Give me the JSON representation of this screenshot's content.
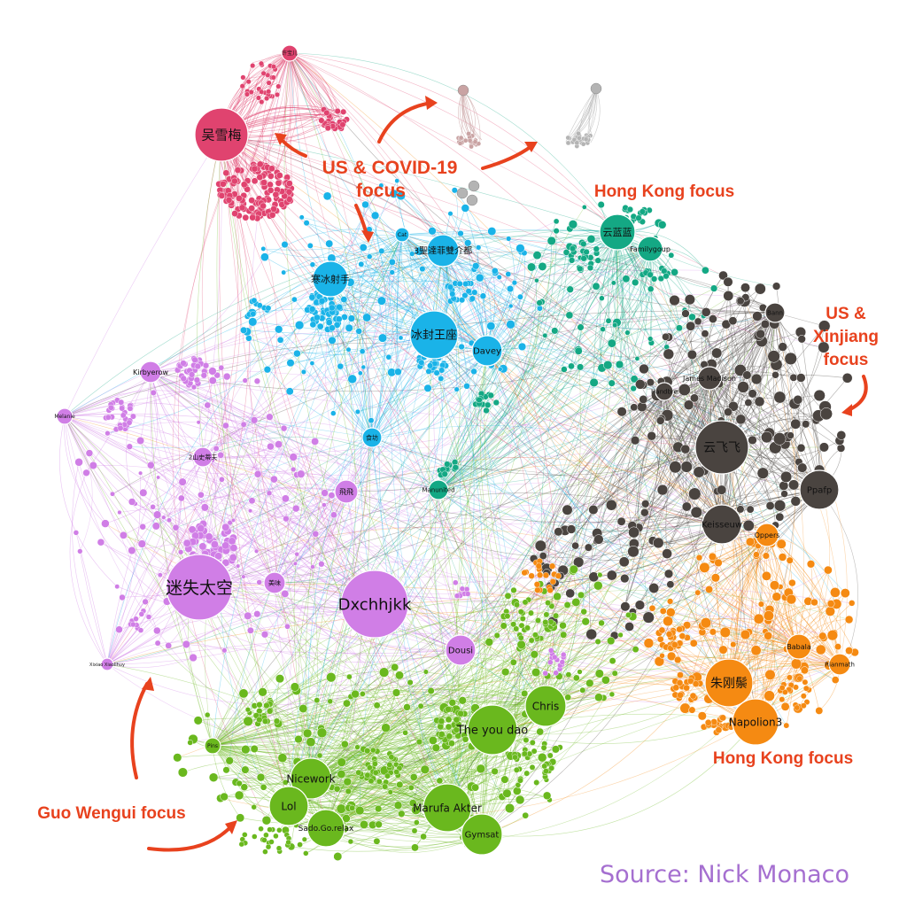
{
  "annotations": {
    "us_covid_line1": "US & COVID-19",
    "us_covid_line2": "focus",
    "hong_kong_top": "Hong Kong focus",
    "us_xinjiang_line1": "US &",
    "us_xinjiang_line2": "Xinjiang",
    "us_xinjiang_line3": "focus",
    "hong_kong_bottom": "Hong Kong focus",
    "guo_wengui": "Guo Wengui focus"
  },
  "source_credit": "Source: Nick Monaco",
  "colors": {
    "pink": "#e0436f",
    "blue": "#1ab3e8",
    "teal": "#14a884",
    "dark": "#4a4440",
    "purple": "#d07ee6",
    "green": "#6ab81e",
    "orange": "#f58a12",
    "rose_gray": "#c9a3a3",
    "gray": "#b4b4b4",
    "annotation": "#e8421e",
    "source": "#a56fd0"
  },
  "nodes": {
    "n_wuxuemei": "吴雪梅",
    "n_xubaoer": "许宝儿",
    "n_hanbingshe": "寒冰射手",
    "n_bingfeng": "冰封王座",
    "n_davey": "Davey",
    "n_cat": "Cat",
    "n_3sheng": "3聖達菲雙介都",
    "n_shifang": "食坊",
    "n_yunlanlan": "云蓝蓝",
    "n_familygoup": "Familygoup",
    "n_manunited": "Manunited",
    "n_kirbyerow": "Kirbyerow",
    "n_melanie": "Melanie",
    "n_2shan": "2山史蒂夫",
    "n_feifei": "飛飛",
    "n_mishi": "迷失太空",
    "n_dxchhjkk": "Dxchhjkk",
    "n_meiwei": "美味",
    "n_dousi": "Dousi",
    "n_xixiao": "Xixiao Xiaolihuy",
    "n_bann": "Bann",
    "n_jamesmadison": "James Madison",
    "n_handbre": "Handbre",
    "n_yunfeifei": "云飞飞",
    "n_ppafp": "Ppafp",
    "n_keisseuw": "Keisseuw",
    "n_oppers": "Oppers",
    "n_babala": "Babala",
    "n_rianmath": "Rianmath",
    "n_zhugang": "朱刚鬃",
    "n_napolion": "Napolion3",
    "n_chris": "Chris",
    "n_theyoudao": "The you dao",
    "n_nicework": "Nicework",
    "n_lol": "Lol",
    "n_sado": "Sado.Go.relax",
    "n_marufa": "Marufa Akter",
    "n_gymsat": "Gymsat",
    "n_pins": "Pins"
  }
}
